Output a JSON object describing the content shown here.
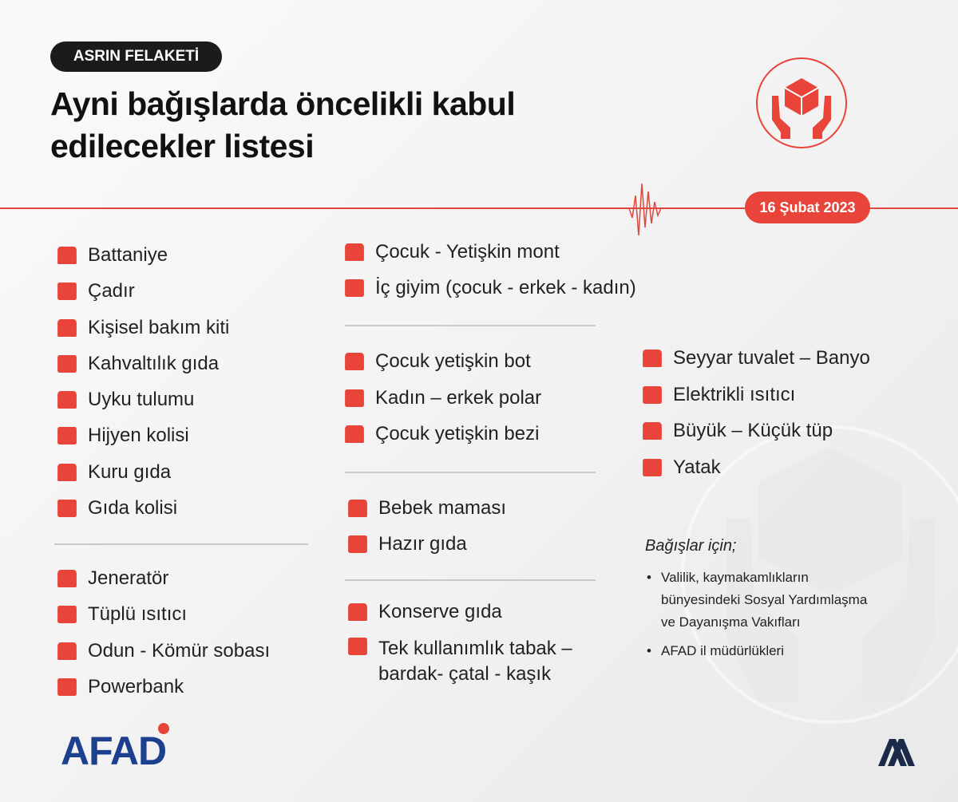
{
  "header": {
    "badge": "ASRIN FELAKETİ",
    "title_line1": "Ayni bağışlarda öncelikli kabul",
    "title_line2": "edilecekler listesi",
    "date": "16 Şubat 2023"
  },
  "colors": {
    "accent": "#e8443a",
    "text": "#1e1e1e",
    "afad_blue": "#1c3f8e"
  },
  "left_group1": [
    {
      "label": "Battaniye",
      "icon": "blanket-icon"
    },
    {
      "label": "Çadır",
      "icon": "tent-icon"
    },
    {
      "label": "Kişisel bakım kiti",
      "icon": "toolbox-icon"
    },
    {
      "label": "Kahvaltılık gıda",
      "icon": "cup-icon"
    },
    {
      "label": "Uyku tulumu",
      "icon": "sleeping-bag-icon"
    },
    {
      "label": "Hijyen kolisi",
      "icon": "box-icon"
    },
    {
      "label": "Kuru gıda",
      "icon": "sack-icon"
    },
    {
      "label": "Gıda kolisi",
      "icon": "gift-box-icon"
    }
  ],
  "left_group2": [
    {
      "label": "Jeneratör",
      "icon": "generator-icon"
    },
    {
      "label": "Tüplü ısıtıcı",
      "icon": "gas-heater-icon"
    },
    {
      "label": "Odun - Kömür sobası",
      "icon": "stove-icon"
    },
    {
      "label": "Powerbank",
      "icon": "powerbank-icon"
    }
  ],
  "mid_group1": [
    {
      "label": "Çocuk - Yetişkin mont",
      "icon": "coat-icon"
    },
    {
      "label": "İç giyim (çocuk - erkek - kadın)",
      "icon": "underwear-icon"
    }
  ],
  "mid_group2": [
    {
      "label": "Çocuk yetişkin bot",
      "icon": "boot-icon"
    },
    {
      "label": "Kadın – erkek polar",
      "icon": "jacket-icon"
    },
    {
      "label": "Çocuk yetişkin bezi",
      "icon": "diaper-icon"
    }
  ],
  "mid_group3": [
    {
      "label": "Bebek maması",
      "icon": "baby-bottle-icon"
    },
    {
      "label": "Hazır gıda",
      "icon": "food-bowl-icon"
    }
  ],
  "mid_group4": [
    {
      "label": "Konserve gıda",
      "icon": "can-icon"
    },
    {
      "label": "Tek kullanımlık tabak – bardak- çatal - kaşık",
      "icon": "cutlery-icon"
    }
  ],
  "right_group": [
    {
      "label": "Seyyar tuvalet – Banyo",
      "icon": "toilet-icon"
    },
    {
      "label": "Elektrikli ısıtıcı",
      "icon": "radiator-icon"
    },
    {
      "label": "Büyük – Küçük tüp",
      "icon": "gas-cylinder-icon"
    },
    {
      "label": "Yatak",
      "icon": "bed-icon"
    }
  ],
  "donations": {
    "heading": "Bağışlar için;",
    "items": [
      "Valilik, kaymakamlıkların bünyesindeki Sosyal Yardımlaşma ve Dayanışma Vakıfları",
      "AFAD il müdürlükleri"
    ]
  },
  "footer": {
    "afad_logo": "AFAD",
    "aa_logo": "AA"
  }
}
